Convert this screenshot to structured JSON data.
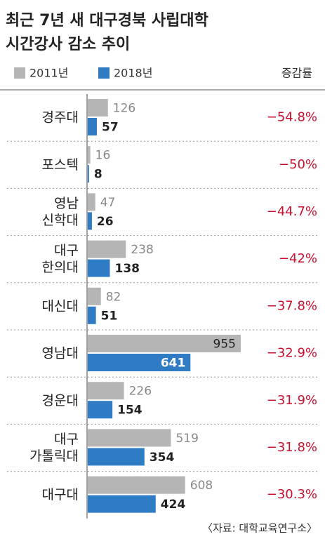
{
  "chart_data": {
    "type": "bar",
    "orientation": "horizontal",
    "title": [
      "최근 7년 새 대구경북 사립대학",
      "시간강사 감소 추이"
    ],
    "categories": [
      [
        "경주대"
      ],
      [
        "포스텍"
      ],
      [
        "영남",
        "신학대"
      ],
      [
        "대구",
        "한의대"
      ],
      [
        "대신대"
      ],
      [
        "영남대"
      ],
      [
        "경운대"
      ],
      [
        "대구",
        "가톨릭대"
      ],
      [
        "대구대"
      ]
    ],
    "series": [
      {
        "name": "2011년",
        "color": "#b5b5b5",
        "values": [
          126,
          16,
          47,
          238,
          82,
          955,
          226,
          519,
          608
        ]
      },
      {
        "name": "2018년",
        "color": "#2f7cc5",
        "values": [
          57,
          8,
          26,
          138,
          51,
          641,
          154,
          354,
          424
        ]
      }
    ],
    "change": {
      "name": "증감률",
      "color": "#c8102e",
      "values": [
        -54.8,
        -50,
        -44.7,
        -42,
        -37.8,
        -32.9,
        -31.9,
        -31.8,
        -30.3
      ],
      "value_labels": [
        "−54.8%",
        "−50%",
        "−44.7%",
        "−42%",
        "−37.8%",
        "−32.9%",
        "−31.9%",
        "−31.8%",
        "−30.3%"
      ]
    },
    "source": "〈자료: 대학교육연구소〉"
  }
}
